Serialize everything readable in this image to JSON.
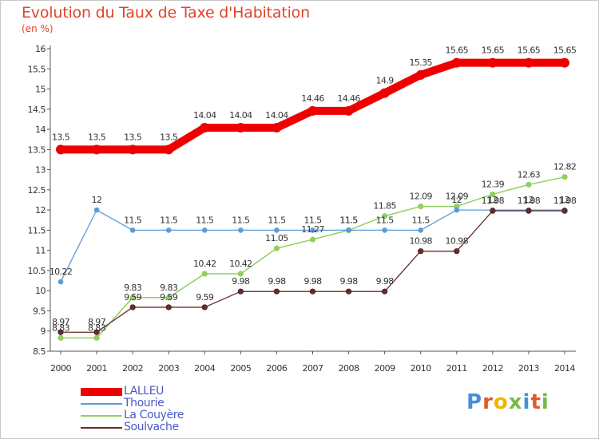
{
  "title": "Evolution du Taux de Taxe d'Habitation",
  "unit_label": "(en %)",
  "logo": {
    "letters": [
      "P",
      "r",
      "o",
      "x",
      "i",
      "t",
      "i"
    ],
    "colors": [
      "#4a8fd6",
      "#e05a2a",
      "#f2b400",
      "#7ab648",
      "#4a8fd6",
      "#e05a2a",
      "#7ab648"
    ]
  },
  "chart_data": {
    "type": "line",
    "title": "Evolution du Taux de Taxe d'Habitation",
    "ylabel": "(en %)",
    "xlabel": "",
    "x": [
      "2000",
      "2001",
      "2002",
      "2003",
      "2004",
      "2005",
      "2006",
      "2007",
      "2008",
      "2009",
      "2010",
      "2011",
      "2012",
      "2013",
      "2014"
    ],
    "ylim": [
      8.5,
      16
    ],
    "yticks": [
      "8.5",
      "9",
      "9.5",
      "10",
      "10.5",
      "11",
      "11.5",
      "12",
      "12.5",
      "13",
      "13.5",
      "14",
      "14.5",
      "15",
      "15.5",
      "16"
    ],
    "grid": false,
    "legend_position": "bottom-left",
    "series": [
      {
        "name": "LALLEU",
        "color": "#ee0000",
        "values": [
          13.5,
          13.5,
          13.5,
          13.5,
          14.04,
          14.04,
          14.04,
          14.46,
          14.46,
          14.9,
          15.35,
          15.65,
          15.65,
          15.65,
          15.65
        ],
        "labels": [
          "13.5",
          "13.5",
          "13.5",
          "13.5",
          "14.04",
          "14.04",
          "14.04",
          "14.46",
          "14.46",
          "14.9",
          "15.35",
          "15.65",
          "15.65",
          "15.65",
          "15.65"
        ]
      },
      {
        "name": "Thourie",
        "color": "#5b9bd5",
        "values": [
          10.22,
          12,
          11.5,
          11.5,
          11.5,
          11.5,
          11.5,
          11.5,
          11.5,
          11.5,
          11.5,
          12,
          12,
          12,
          12
        ],
        "labels": [
          "10.22",
          "12",
          "11.5",
          "11.5",
          "11.5",
          "11.5",
          "11.5",
          "11.5",
          "11.5",
          "11.5",
          "11.5",
          "12",
          "12",
          "12",
          "12"
        ]
      },
      {
        "name": "La Couyère",
        "color": "#8fd061",
        "values": [
          8.83,
          8.83,
          9.83,
          9.83,
          10.42,
          10.42,
          11.05,
          11.27,
          11.5,
          11.85,
          12.09,
          12.09,
          12.39,
          12.63,
          12.82
        ],
        "labels": [
          "8.83",
          "8.83",
          "9.83",
          "9.83",
          "10.42",
          "10.42",
          "11.05",
          "11.27",
          "11.5",
          "11.85",
          "12.09",
          "12.09",
          "12.39",
          "12.63",
          "12.82"
        ]
      },
      {
        "name": "Soulvache",
        "color": "#6b2a2a",
        "values": [
          8.97,
          8.97,
          9.59,
          9.59,
          9.59,
          9.98,
          9.98,
          9.98,
          9.98,
          9.98,
          10.98,
          10.98,
          11.98,
          11.98,
          11.98
        ],
        "labels": [
          "8.97",
          "8.97",
          "9.59",
          "9.59",
          "9.59",
          "9.98",
          "9.98",
          "9.98",
          "9.98",
          "9.98",
          "10.98",
          "10.98",
          "11.98",
          "11.98",
          "11.98"
        ]
      }
    ]
  }
}
